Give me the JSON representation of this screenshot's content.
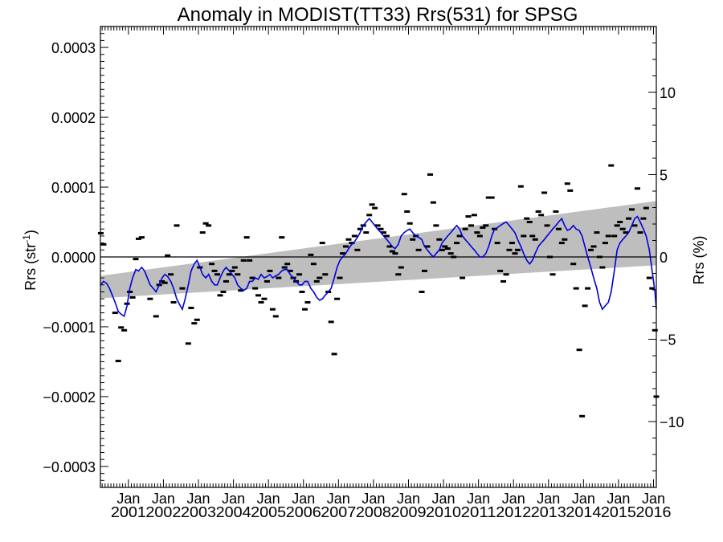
{
  "chart_data": {
    "type": "line",
    "title": "Anomaly in MODIST(TT33) Rrs(531) for SPSG",
    "ylabel_main": "Rrs (str",
    "ylabel_sup": "-1",
    "ylabel_close": ")",
    "ylabel_right": "Rrs (%)",
    "ylim": [
      -0.00033,
      0.00033
    ],
    "y2lim": [
      -14,
      14
    ],
    "xlim": [
      2000.2,
      2016.08
    ],
    "yticks": [
      {
        "value": 0.0003,
        "label": "0.0003"
      },
      {
        "value": 0.0002,
        "label": "0.0002"
      },
      {
        "value": 0.0001,
        "label": "0.0001"
      },
      {
        "value": 0.0,
        "label": "0.0000"
      },
      {
        "value": -0.0001,
        "label": "−0.0001"
      },
      {
        "value": -0.0002,
        "label": "−0.0002"
      },
      {
        "value": -0.0003,
        "label": "−0.0003"
      }
    ],
    "y2ticks": [
      {
        "value": 10,
        "label": "10"
      },
      {
        "value": 5,
        "label": "5"
      },
      {
        "value": 0,
        "label": "0"
      },
      {
        "value": -5,
        "label": "−5"
      },
      {
        "value": -10,
        "label": "−10"
      }
    ],
    "xticks": [
      {
        "value": 2001,
        "month": "Jan",
        "year": "2001"
      },
      {
        "value": 2002,
        "month": "Jan",
        "year": "2002"
      },
      {
        "value": 2003,
        "month": "Jan",
        "year": "2003"
      },
      {
        "value": 2004,
        "month": "Jan",
        "year": "2004"
      },
      {
        "value": 2005,
        "month": "Jan",
        "year": "2005"
      },
      {
        "value": 2006,
        "month": "Jan",
        "year": "2006"
      },
      {
        "value": 2007,
        "month": "Jan",
        "year": "2007"
      },
      {
        "value": 2008,
        "month": "Jan",
        "year": "2008"
      },
      {
        "value": 2009,
        "month": "Jan",
        "year": "2009"
      },
      {
        "value": 2010,
        "month": "Jan",
        "year": "2010"
      },
      {
        "value": 2011,
        "month": "Jan",
        "year": "2011"
      },
      {
        "value": 2012,
        "month": "Jan",
        "year": "2012"
      },
      {
        "value": 2013,
        "month": "Jan",
        "year": "2013"
      },
      {
        "value": 2014,
        "month": "Jan",
        "year": "2014"
      },
      {
        "value": 2015,
        "month": "Jan",
        "year": "2015"
      },
      {
        "value": 2016,
        "month": "Jan",
        "year": "2016"
      }
    ],
    "trend_band": {
      "x": [
        2000.2,
        2016.08
      ],
      "upper": [
        -2.7e-05,
        8e-05
      ],
      "lower": [
        -5.9e-05,
        -1.2e-05
      ],
      "color": "#bebebe"
    },
    "zero_line": 0,
    "colors": {
      "smoothed": "#0000dd",
      "monthly": "#000000",
      "band": "#bebebe"
    },
    "monthly_points": [
      [
        2000.21,
        3.4e-05
      ],
      [
        2000.29,
        1.8e-05
      ],
      [
        2000.62,
        -8e-05
      ],
      [
        2000.71,
        -0.000149
      ],
      [
        2000.79,
        -0.000101
      ],
      [
        2000.88,
        -0.000105
      ],
      [
        2000.96,
        -6.7e-05
      ],
      [
        2001.04,
        -5e-05
      ],
      [
        2001.12,
        -5.8e-05
      ],
      [
        2001.21,
        -3e-06
      ],
      [
        2001.29,
        2.6e-05
      ],
      [
        2001.38,
        2.8e-05
      ],
      [
        2001.62,
        -6e-05
      ],
      [
        2001.79,
        -8.5e-05
      ],
      [
        2001.88,
        -4e-05
      ],
      [
        2001.96,
        -3.5e-05
      ],
      [
        2002.04,
        -3.7e-05
      ],
      [
        2002.12,
        2e-06
      ],
      [
        2002.21,
        -2.5e-05
      ],
      [
        2002.29,
        -6.5e-05
      ],
      [
        2002.38,
        4.5e-05
      ],
      [
        2002.54,
        -4.5e-05
      ],
      [
        2002.71,
        -0.000124
      ],
      [
        2002.79,
        -7.3e-05
      ],
      [
        2002.88,
        -9.5e-05
      ],
      [
        2002.96,
        -9e-05
      ],
      [
        2003.04,
        -1.5e-05
      ],
      [
        2003.12,
        3.5e-05
      ],
      [
        2003.21,
        4.8e-05
      ],
      [
        2003.29,
        4.5e-05
      ],
      [
        2003.38,
        -1e-05
      ],
      [
        2003.46,
        -2e-05
      ],
      [
        2003.54,
        -2.5e-05
      ],
      [
        2003.62,
        -5.5e-05
      ],
      [
        2003.71,
        -5e-05
      ],
      [
        2003.79,
        -3.5e-05
      ],
      [
        2003.88,
        -2.5e-05
      ],
      [
        2003.96,
        -2e-05
      ],
      [
        2004.04,
        -1.5e-05
      ],
      [
        2004.12,
        -2.5e-05
      ],
      [
        2004.21,
        -4.8e-05
      ],
      [
        2004.29,
        -5e-06
      ],
      [
        2004.38,
        2.8e-05
      ],
      [
        2004.46,
        -5e-06
      ],
      [
        2004.54,
        -3e-05
      ],
      [
        2004.62,
        -4.5e-05
      ],
      [
        2004.71,
        -5.5e-05
      ],
      [
        2004.79,
        -6.5e-05
      ],
      [
        2004.88,
        -6e-05
      ],
      [
        2004.96,
        -3.5e-05
      ],
      [
        2005.04,
        -2e-05
      ],
      [
        2005.12,
        -7.5e-05
      ],
      [
        2005.21,
        -8.5e-05
      ],
      [
        2005.29,
        -3e-05
      ],
      [
        2005.38,
        2.8e-05
      ],
      [
        2005.46,
        -1.5e-05
      ],
      [
        2005.54,
        -1e-05
      ],
      [
        2005.62,
        -2e-05
      ],
      [
        2005.71,
        -3e-05
      ],
      [
        2005.79,
        -3.5e-05
      ],
      [
        2005.88,
        -2.5e-05
      ],
      [
        2005.96,
        -5e-05
      ],
      [
        2006.04,
        -7.5e-05
      ],
      [
        2006.12,
        -6.5e-05
      ],
      [
        2006.21,
        3e-06
      ],
      [
        2006.29,
        -1e-05
      ],
      [
        2006.38,
        -3.5e-05
      ],
      [
        2006.46,
        -3e-05
      ],
      [
        2006.54,
        2e-05
      ],
      [
        2006.62,
        -2.5e-05
      ],
      [
        2006.71,
        -5e-05
      ],
      [
        2006.79,
        -9.3e-05
      ],
      [
        2006.88,
        -0.000139
      ],
      [
        2006.96,
        -6e-05
      ],
      [
        2007.04,
        -3e-05
      ],
      [
        2007.12,
        5e-06
      ],
      [
        2007.21,
        1.5e-05
      ],
      [
        2007.29,
        2.5e-05
      ],
      [
        2007.38,
        2e-05
      ],
      [
        2007.46,
        3e-05
      ],
      [
        2007.54,
        1e-05
      ],
      [
        2007.62,
        4e-05
      ],
      [
        2007.71,
        4.5e-05
      ],
      [
        2007.79,
        3.5e-05
      ],
      [
        2007.88,
        6e-05
      ],
      [
        2007.96,
        7.5e-05
      ],
      [
        2008.04,
        7e-05
      ],
      [
        2008.12,
        4.5e-05
      ],
      [
        2008.21,
        4e-05
      ],
      [
        2008.29,
        3.5e-05
      ],
      [
        2008.38,
        3e-05
      ],
      [
        2008.46,
        1.5e-05
      ],
      [
        2008.54,
        8e-06
      ],
      [
        2008.62,
        5e-06
      ],
      [
        2008.71,
        -2.5e-05
      ],
      [
        2008.79,
        -1.5e-05
      ],
      [
        2008.88,
        9e-05
      ],
      [
        2008.96,
        6.5e-05
      ],
      [
        2009.04,
        4.8e-05
      ],
      [
        2009.12,
        2.5e-05
      ],
      [
        2009.21,
        3e-05
      ],
      [
        2009.29,
        1e-05
      ],
      [
        2009.38,
        -5e-05
      ],
      [
        2009.46,
        -2e-05
      ],
      [
        2009.54,
        1.5e-05
      ],
      [
        2009.62,
        0.000118
      ],
      [
        2009.71,
        7.8e-05
      ],
      [
        2009.79,
        4.5e-05
      ],
      [
        2009.88,
        2.5e-05
      ],
      [
        2009.96,
        1e-05
      ],
      [
        2010.04,
        1.5e-05
      ],
      [
        2010.12,
        1.2e-05
      ],
      [
        2010.21,
        5e-06
      ],
      [
        2010.29,
        0.0
      ],
      [
        2010.38,
        2e-05
      ],
      [
        2010.46,
        3e-05
      ],
      [
        2010.54,
        -3e-05
      ],
      [
        2010.62,
        4e-05
      ],
      [
        2010.71,
        5.8e-05
      ],
      [
        2010.79,
        4.5e-05
      ],
      [
        2010.88,
        6e-05
      ],
      [
        2010.96,
        3.5e-05
      ],
      [
        2011.04,
        3e-05
      ],
      [
        2011.12,
        4.2e-05
      ],
      [
        2011.21,
        4.5e-05
      ],
      [
        2011.29,
        8.5e-05
      ],
      [
        2011.38,
        8.5e-05
      ],
      [
        2011.46,
        4e-05
      ],
      [
        2011.54,
        2e-05
      ],
      [
        2011.62,
        -2e-05
      ],
      [
        2011.71,
        -3.5e-05
      ],
      [
        2011.79,
        -2.5e-05
      ],
      [
        2011.88,
        1e-05
      ],
      [
        2011.96,
        2e-05
      ],
      [
        2012.04,
        5e-06
      ],
      [
        2012.12,
        1e-05
      ],
      [
        2012.21,
        0.000101
      ],
      [
        2012.29,
        3e-05
      ],
      [
        2012.38,
        5.5e-05
      ],
      [
        2012.46,
        5e-05
      ],
      [
        2012.54,
        3e-05
      ],
      [
        2012.62,
        2.5e-05
      ],
      [
        2012.71,
        6.5e-05
      ],
      [
        2012.79,
        6e-05
      ],
      [
        2012.88,
        9.2e-05
      ],
      [
        2012.96,
        4.5e-05
      ],
      [
        2013.04,
        0.0
      ],
      [
        2013.12,
        -2.5e-05
      ],
      [
        2013.21,
        6.5e-05
      ],
      [
        2013.29,
        4e-05
      ],
      [
        2013.38,
        2e-05
      ],
      [
        2013.46,
        2.5e-05
      ],
      [
        2013.54,
        0.000105
      ],
      [
        2013.62,
        9.5e-05
      ],
      [
        2013.71,
        -1e-05
      ],
      [
        2013.79,
        -4.5e-05
      ],
      [
        2013.88,
        -0.000133
      ],
      [
        2013.96,
        -0.000228
      ],
      [
        2014.04,
        -7e-05
      ],
      [
        2014.12,
        -4.5e-05
      ],
      [
        2014.21,
        1e-05
      ],
      [
        2014.29,
        1.5e-05
      ],
      [
        2014.38,
        3.5e-05
      ],
      [
        2014.46,
        0.0
      ],
      [
        2014.54,
        -1.5e-05
      ],
      [
        2014.62,
        2e-05
      ],
      [
        2014.71,
        3e-05
      ],
      [
        2014.79,
        0.000131
      ],
      [
        2014.88,
        3e-05
      ],
      [
        2014.96,
        4.5e-05
      ],
      [
        2015.04,
        5e-05
      ],
      [
        2015.12,
        4e-05
      ],
      [
        2015.21,
        3.5e-05
      ],
      [
        2015.29,
        5.5e-05
      ],
      [
        2015.38,
        6.8e-05
      ],
      [
        2015.46,
        4.5e-05
      ],
      [
        2015.54,
        9.8e-05
      ],
      [
        2015.62,
        3.5e-05
      ],
      [
        2015.71,
        5.5e-05
      ],
      [
        2015.79,
        7e-05
      ],
      [
        2015.88,
        -3e-05
      ],
      [
        2015.96,
        -4.5e-05
      ],
      [
        2016.04,
        -0.000105
      ],
      [
        2016.08,
        -0.0002
      ]
    ],
    "smoothed_series": {
      "x": [
        2000.2,
        2000.29,
        2000.38,
        2000.46,
        2000.54,
        2000.62,
        2000.71,
        2000.79,
        2000.88,
        2000.96,
        2001.04,
        2001.12,
        2001.21,
        2001.29,
        2001.38,
        2001.46,
        2001.54,
        2001.62,
        2001.71,
        2001.79,
        2001.88,
        2001.96,
        2002.04,
        2002.12,
        2002.21,
        2002.29,
        2002.38,
        2002.46,
        2002.54,
        2002.62,
        2002.71,
        2002.79,
        2002.88,
        2002.96,
        2003.04,
        2003.12,
        2003.21,
        2003.29,
        2003.38,
        2003.46,
        2003.54,
        2003.62,
        2003.71,
        2003.79,
        2003.88,
        2003.96,
        2004.04,
        2004.12,
        2004.21,
        2004.29,
        2004.38,
        2004.46,
        2004.54,
        2004.62,
        2004.71,
        2004.79,
        2004.88,
        2004.96,
        2005.04,
        2005.12,
        2005.21,
        2005.29,
        2005.38,
        2005.46,
        2005.54,
        2005.62,
        2005.71,
        2005.79,
        2005.88,
        2005.96,
        2006.04,
        2006.12,
        2006.21,
        2006.29,
        2006.38,
        2006.46,
        2006.54,
        2006.62,
        2006.71,
        2006.79,
        2006.88,
        2006.96,
        2007.04,
        2007.12,
        2007.21,
        2007.29,
        2007.38,
        2007.46,
        2007.54,
        2007.62,
        2007.71,
        2007.79,
        2007.88,
        2007.96,
        2008.04,
        2008.12,
        2008.21,
        2008.29,
        2008.38,
        2008.46,
        2008.54,
        2008.62,
        2008.71,
        2008.79,
        2008.88,
        2008.96,
        2009.04,
        2009.12,
        2009.21,
        2009.29,
        2009.38,
        2009.46,
        2009.54,
        2009.62,
        2009.71,
        2009.79,
        2009.88,
        2009.96,
        2010.04,
        2010.12,
        2010.21,
        2010.29,
        2010.38,
        2010.46,
        2010.54,
        2010.62,
        2010.71,
        2010.79,
        2010.88,
        2010.96,
        2011.04,
        2011.12,
        2011.21,
        2011.29,
        2011.38,
        2011.46,
        2011.54,
        2011.62,
        2011.71,
        2011.79,
        2011.88,
        2011.96,
        2012.04,
        2012.12,
        2012.21,
        2012.29,
        2012.38,
        2012.46,
        2012.54,
        2012.62,
        2012.71,
        2012.79,
        2012.88,
        2012.96,
        2013.04,
        2013.12,
        2013.21,
        2013.29,
        2013.38,
        2013.46,
        2013.54,
        2013.62,
        2013.71,
        2013.79,
        2013.88,
        2013.96,
        2014.04,
        2014.12,
        2014.21,
        2014.29,
        2014.38,
        2014.46,
        2014.54,
        2014.62,
        2014.71,
        2014.79,
        2014.88,
        2014.96,
        2015.04,
        2015.12,
        2015.21,
        2015.29,
        2015.38,
        2015.46,
        2015.54,
        2015.62,
        2015.71,
        2015.79,
        2015.88,
        2015.96,
        2016.04,
        2016.08
      ],
      "y": [
        -4e-05,
        -3.5e-05,
        -3.8e-05,
        -4.5e-05,
        -5.5e-05,
        -6.5e-05,
        -7.8e-05,
        -8.2e-05,
        -8.5e-05,
        -7e-05,
        -4.5e-05,
        -3e-05,
        -1.8e-05,
        -2e-05,
        -1.5e-05,
        -2e-05,
        -3e-05,
        -4e-05,
        -4.5e-05,
        -5e-05,
        -4e-05,
        -3e-05,
        -2.5e-05,
        -2.8e-05,
        -3.5e-05,
        -4.5e-05,
        -6e-05,
        -6.8e-05,
        -7.5e-05,
        -6e-05,
        -4e-05,
        -2e-05,
        -1e-05,
        -5e-06,
        -1.5e-05,
        -2.5e-05,
        -3e-05,
        -2.5e-05,
        -3.5e-05,
        -4e-05,
        -4e-05,
        -3e-05,
        -2e-05,
        -1.5e-05,
        -2e-05,
        -2.5e-05,
        -3e-05,
        -4e-05,
        -4.5e-05,
        -4.8e-05,
        -4.5e-05,
        -3.5e-05,
        -3.5e-05,
        -3e-05,
        -3.2e-05,
        -2.5e-05,
        -3e-05,
        -2.8e-05,
        -2.5e-05,
        -3e-05,
        -2.7e-05,
        -2.5e-05,
        -2e-05,
        -1.8e-05,
        -1.8e-05,
        -2.5e-05,
        -3e-05,
        -3.5e-05,
        -4e-05,
        -4e-05,
        -3.5e-05,
        -3.5e-05,
        -4.5e-05,
        -5e-05,
        -5.8e-05,
        -6.2e-05,
        -6e-05,
        -5.5e-05,
        -5e-05,
        -4.5e-05,
        -3e-05,
        -1.5e-05,
        -5e-06,
        0.0,
        5e-06,
        1.2e-05,
        1.8e-05,
        2.2e-05,
        2.8e-05,
        3.5e-05,
        4.5e-05,
        5e-05,
        5.5e-05,
        5e-05,
        4.5e-05,
        4e-05,
        3.5e-05,
        3e-05,
        2.5e-05,
        2e-05,
        1.5e-05,
        1.2e-05,
        1.8e-05,
        3e-05,
        3.5e-05,
        3.8e-05,
        4e-05,
        3.5e-05,
        3e-05,
        2.8e-05,
        2.5e-05,
        1.5e-05,
        1e-05,
        5e-06,
        0.0,
        5e-06,
        1e-05,
        2e-05,
        2.5e-05,
        3e-05,
        3.5e-05,
        4e-05,
        4.5e-05,
        4e-05,
        3e-05,
        2.5e-05,
        2e-05,
        1.5e-05,
        1e-05,
        5e-06,
        0.0,
        0.0,
        5e-06,
        1.5e-05,
        3e-05,
        4e-05,
        4.2e-05,
        4.5e-05,
        4.8e-05,
        5e-05,
        4.5e-05,
        4e-05,
        3.5e-05,
        2.5e-05,
        1.5e-05,
        5e-06,
        -5e-06,
        -1e-05,
        -5e-06,
        5e-06,
        1.5e-05,
        2e-05,
        2.5e-05,
        3e-05,
        3.5e-05,
        4e-05,
        4.5e-05,
        5e-05,
        5.5e-05,
        4.5e-05,
        3.8e-05,
        4e-05,
        4.5e-05,
        4e-05,
        3.8e-05,
        3e-05,
        1.5e-05,
        0.0,
        -1.5e-05,
        -3e-05,
        -4.5e-05,
        -6.5e-05,
        -7.5e-05,
        -7e-05,
        -6.5e-05,
        -5e-05,
        -2e-05,
        1e-05,
        2e-05,
        2.5e-05,
        3e-05,
        3.5e-05,
        4.5e-05,
        5.5e-05,
        5.8e-05,
        5e-05,
        4e-05,
        3e-05,
        1e-05,
        -2e-05,
        -5e-05,
        -7.5e-05
      ]
    }
  }
}
